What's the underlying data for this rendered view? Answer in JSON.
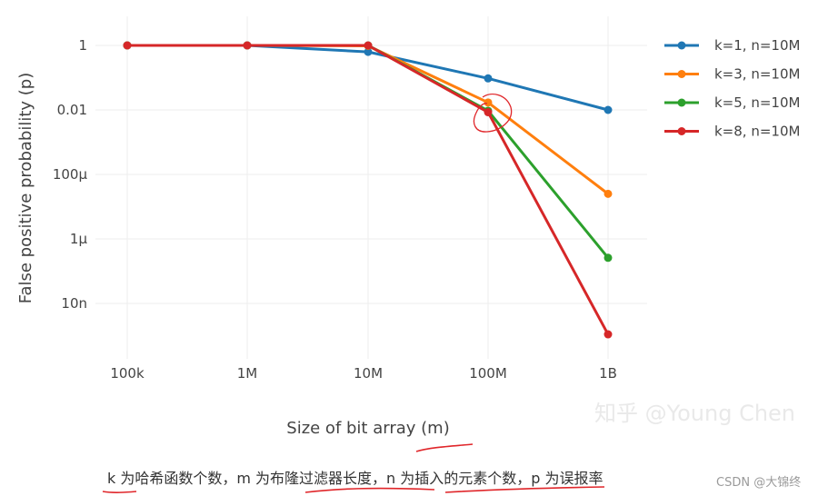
{
  "chart_data": {
    "type": "line",
    "x_categories": [
      "100k",
      "1M",
      "10M",
      "100M",
      "1B"
    ],
    "y_ticks": [
      {
        "value": 1,
        "label": "1"
      },
      {
        "value": 0.01,
        "label": "0.01"
      },
      {
        "value": 0.0001,
        "label": "100μ"
      },
      {
        "value": 1e-06,
        "label": "1μ"
      },
      {
        "value": 1e-08,
        "label": "10n"
      }
    ],
    "y_scale": "log",
    "ylim": [
      1e-09,
      3
    ],
    "xlabel": "Size of bit array (m)",
    "ylabel": "False positive probability (p)",
    "grid": true,
    "legend_position": "right",
    "series": [
      {
        "name": "k=1, n=10M",
        "color": "#1f77b4",
        "values": [
          1,
          1,
          0.63,
          0.095,
          0.01
        ]
      },
      {
        "name": "k=3, n=10M",
        "color": "#ff7f0e",
        "values": [
          1,
          1,
          0.97,
          0.017,
          2.5e-05
        ]
      },
      {
        "name": "k=5, n=10M",
        "color": "#2ca02c",
        "values": [
          1,
          1,
          1,
          0.0094,
          2.6e-07
        ]
      },
      {
        "name": "k=8, n=10M",
        "color": "#d62728",
        "values": [
          1,
          1,
          1,
          0.0085,
          1.1e-09
        ]
      }
    ]
  },
  "watermark": "知乎 @Young Chen",
  "caption": "k 为哈希函数个数，m 为布隆过滤器长度，n 为插入的元素个数，p 为误报率",
  "source_tag": "CSDN @大锦终",
  "annotation_color": "#e0262a"
}
